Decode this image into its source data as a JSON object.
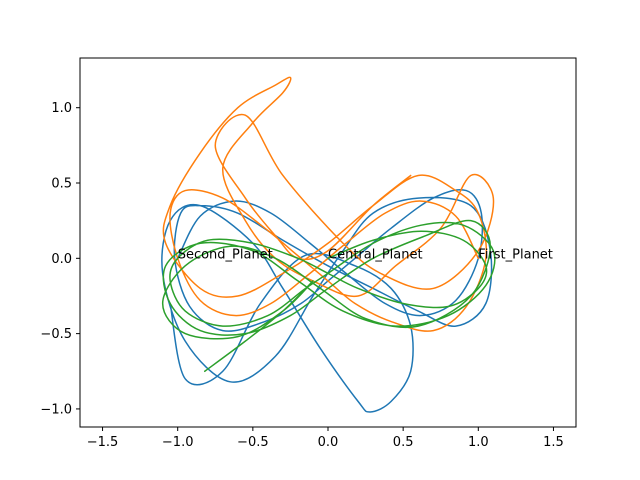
{
  "chart_data": {
    "type": "line",
    "title": "",
    "xlabel": "",
    "ylabel": "",
    "xlim": [
      -1.65,
      1.65
    ],
    "ylim": [
      -1.12,
      1.33
    ],
    "xticks": [
      -1.5,
      -1.0,
      -0.5,
      0.0,
      0.5,
      1.0,
      1.5
    ],
    "xtick_labels": [
      "−1.5",
      "−1.0",
      "−0.5",
      "0.0",
      "0.5",
      "1.0",
      "1.5"
    ],
    "yticks": [
      -1.0,
      -0.5,
      0.0,
      0.5,
      1.0
    ],
    "ytick_labels": [
      "−1.0",
      "−0.5",
      "0.0",
      "0.5",
      "1.0"
    ],
    "grid": false,
    "annotations": [
      {
        "text": "Second_Planet",
        "x": -1.0,
        "y": 0.0
      },
      {
        "text": "Central_Planet",
        "x": 0.0,
        "y": 0.0
      },
      {
        "text": "First_Planet",
        "x": 1.0,
        "y": 0.0
      }
    ],
    "series": [
      {
        "color": "#1f77b4",
        "x": [
          -1.0,
          -0.85,
          -0.62,
          -0.38,
          -0.12,
          0.12,
          0.38,
          0.62,
          0.85,
          1.0,
          1.02,
          0.92,
          0.7,
          0.42,
          0.18,
          0.0,
          -0.18,
          -0.42,
          -0.7,
          -0.92,
          -1.02,
          -0.98,
          -0.85,
          -0.6,
          -0.3,
          0.0,
          0.3,
          0.6,
          0.85,
          1.05,
          1.08,
          0.95,
          0.6,
          0.3,
          0.1,
          -0.1,
          -0.35,
          -0.65,
          -0.95,
          -1.1,
          -1.05,
          -0.85,
          -0.5,
          -0.3,
          -0.05,
          0.2,
          0.28,
          0.42,
          0.55,
          0.55,
          0.42,
          0.18,
          -0.15,
          -0.45,
          -0.7,
          -0.95,
          -1.05
        ],
        "y": [
          0.0,
          0.28,
          0.38,
          0.3,
          0.1,
          -0.1,
          -0.3,
          -0.38,
          -0.28,
          0.0,
          0.3,
          0.45,
          0.4,
          0.2,
          0.0,
          -0.15,
          -0.3,
          -0.42,
          -0.48,
          -0.32,
          0.0,
          0.3,
          0.35,
          0.3,
          0.12,
          -0.05,
          -0.2,
          -0.35,
          -0.45,
          -0.3,
          0.05,
          0.35,
          0.4,
          0.3,
          0.05,
          -0.25,
          -0.65,
          -0.82,
          -0.55,
          -0.1,
          0.25,
          0.35,
          0.1,
          -0.2,
          -0.6,
          -0.95,
          -1.02,
          -0.95,
          -0.75,
          -0.45,
          -0.2,
          -0.05,
          0.02,
          -0.3,
          -0.75,
          -0.8,
          -0.3
        ]
      },
      {
        "color": "#ff7f0e",
        "x": [
          1.0,
          0.85,
          0.62,
          0.38,
          0.12,
          -0.12,
          -0.38,
          -0.62,
          -0.85,
          -1.0,
          -1.05,
          -0.95,
          -0.7,
          -0.42,
          -0.18,
          0.0,
          0.18,
          0.42,
          0.7,
          0.92,
          1.05,
          1.0,
          0.85,
          0.6,
          0.3,
          0.0,
          -0.3,
          -0.6,
          -0.85,
          -1.08,
          -1.05,
          -0.85,
          -0.6,
          -0.35,
          -0.25,
          -0.3,
          -0.5,
          -0.7,
          -0.55,
          -0.35,
          -0.1,
          0.2,
          0.45,
          0.75,
          0.95,
          1.1,
          1.0,
          0.7,
          0.35,
          0.1,
          -0.3,
          -0.55,
          -0.75,
          -0.55,
          -0.35,
          -0.2,
          0.0,
          0.3,
          0.55
        ],
        "y": [
          0.0,
          0.28,
          0.38,
          0.3,
          0.1,
          -0.1,
          -0.3,
          -0.38,
          -0.28,
          0.0,
          0.3,
          0.45,
          0.4,
          0.2,
          0.0,
          -0.15,
          -0.3,
          -0.42,
          -0.48,
          -0.32,
          0.0,
          0.3,
          0.45,
          0.55,
          0.35,
          0.1,
          -0.1,
          -0.25,
          -0.2,
          0.1,
          0.35,
          0.7,
          1.0,
          1.15,
          1.2,
          1.1,
          0.9,
          0.6,
          0.25,
          0.0,
          -0.15,
          -0.25,
          -0.05,
          0.2,
          0.55,
          0.4,
          0.05,
          -0.2,
          -0.1,
          0.1,
          0.55,
          0.95,
          0.75,
          0.4,
          0.15,
          0.0,
          0.05,
          0.35,
          0.55
        ]
      },
      {
        "color": "#2ca02c",
        "x": [
          0.0,
          0.3,
          0.62,
          0.9,
          1.05,
          1.0,
          0.8,
          0.5,
          0.2,
          0.0,
          -0.2,
          -0.5,
          -0.8,
          -1.0,
          -1.05,
          -0.95,
          -0.7,
          -0.4,
          -0.15,
          0.0,
          0.3,
          0.62,
          0.9,
          1.1,
          1.05,
          0.8,
          0.45,
          0.1,
          -0.2,
          -0.5,
          -0.85,
          -1.08,
          -1.05,
          -0.85,
          -0.55,
          -0.25,
          0.0,
          0.3,
          0.65,
          0.95,
          1.08,
          0.95,
          0.6,
          0.25,
          -0.05,
          -0.35,
          -0.65,
          -0.95,
          -1.1,
          -0.95,
          -0.6,
          -0.3,
          -0.1,
          -0.3,
          -0.55,
          -0.82
        ],
        "y": [
          0.0,
          0.12,
          0.18,
          0.12,
          -0.05,
          -0.2,
          -0.32,
          -0.3,
          -0.2,
          -0.1,
          0.0,
          0.1,
          0.12,
          0.0,
          -0.15,
          -0.35,
          -0.45,
          -0.38,
          -0.2,
          -0.1,
          0.1,
          0.22,
          0.22,
          0.05,
          -0.18,
          -0.38,
          -0.45,
          -0.35,
          -0.15,
          0.05,
          0.1,
          -0.05,
          -0.3,
          -0.48,
          -0.5,
          -0.38,
          -0.2,
          0.0,
          0.15,
          0.25,
          0.08,
          -0.25,
          -0.45,
          -0.4,
          -0.2,
          0.0,
          0.08,
          -0.05,
          -0.3,
          -0.5,
          -0.52,
          -0.35,
          -0.15,
          -0.35,
          -0.55,
          -0.75
        ]
      }
    ]
  }
}
